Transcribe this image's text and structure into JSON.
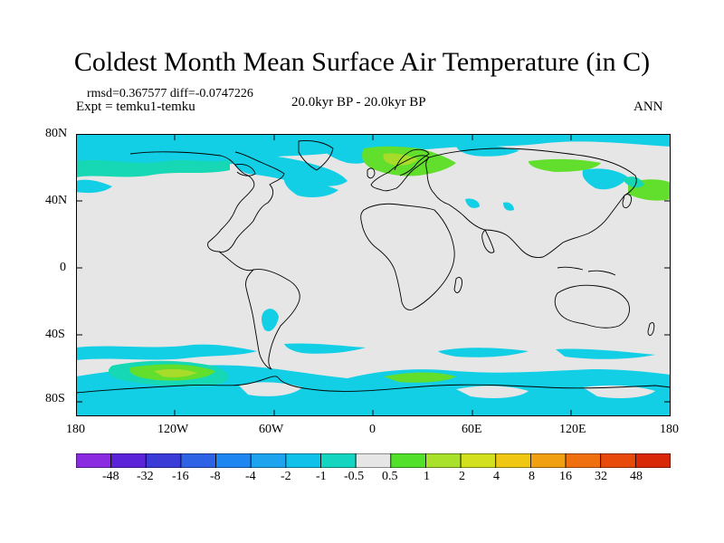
{
  "title": "Coldest Month Mean Surface Air Temperature (in C)",
  "stats": {
    "rmsd_label": "rmsd=",
    "rmsd": "0.367577",
    "diff_label": "diff=",
    "diff": "-0.0747226"
  },
  "experiment": "Expt = temku1-temku",
  "period": "20.0kyr BP - 20.0kyr BP",
  "season": "ANN",
  "axes": {
    "y_ticks": [
      "80N",
      "40N",
      "0",
      "40S",
      "80S"
    ],
    "x_ticks": [
      "180",
      "120W",
      "60W",
      "0",
      "60E",
      "120E",
      "180"
    ]
  },
  "colorbar": {
    "labels": [
      "-48",
      "-32",
      "-16",
      "-8",
      "-4",
      "-2",
      "-1",
      "-0.5",
      "0.5",
      "1",
      "2",
      "4",
      "8",
      "16",
      "32",
      "48"
    ],
    "colors": [
      "#8a2be2",
      "#5b24d8",
      "#3b3bd8",
      "#2f63e6",
      "#1e86f0",
      "#1ea3ee",
      "#10c2ea",
      "#14d6c0",
      "#e6e6e6",
      "#52e02a",
      "#a8e02a",
      "#d2e01e",
      "#f0c814",
      "#f0a010",
      "#f07010",
      "#e84a0c",
      "#d82808"
    ]
  },
  "map_colors": {
    "background": "#e6e6e6",
    "cyan": "#12cfe6",
    "teal": "#16d8b4",
    "green": "#62de2c",
    "yellowgreen": "#a8dc2a",
    "coast": "#000000"
  }
}
